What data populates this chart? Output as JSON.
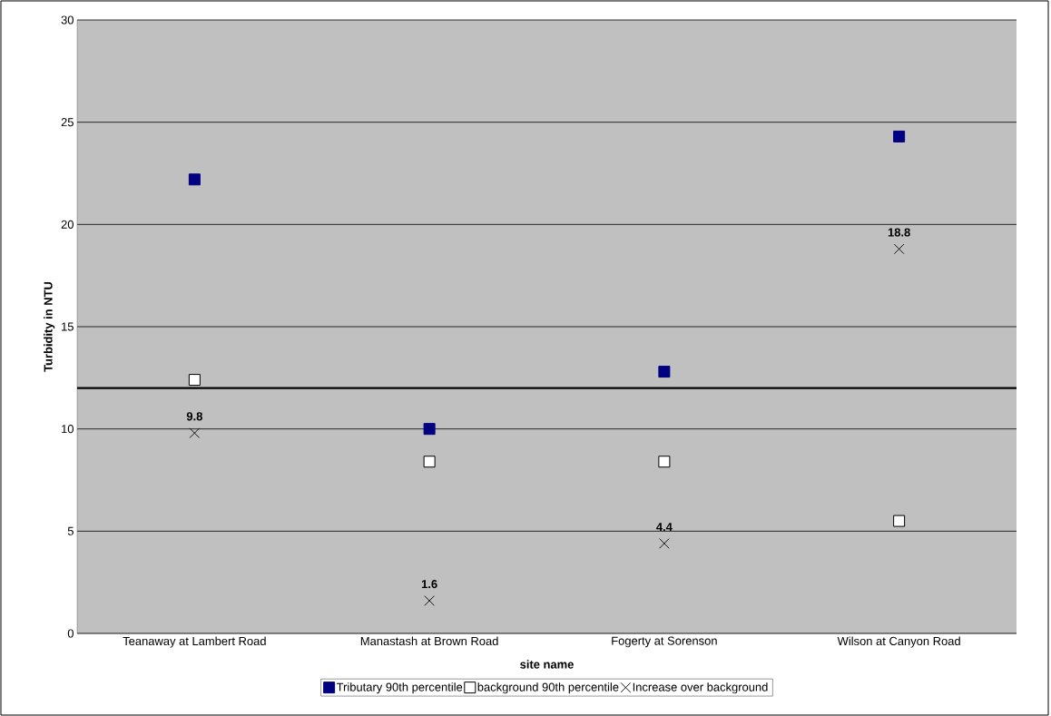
{
  "chart_data": {
    "type": "scatter",
    "xlabel": "site name",
    "ylabel": "Turbidity in NTU",
    "categories": [
      "Teanaway at Lambert Road",
      "Manastash at Brown Road",
      "Fogerty at Sorenson",
      "Wilson at Canyon Road"
    ],
    "series": [
      {
        "name": "Tributary 90th percentile",
        "color": "#000080",
        "marker": "square",
        "values": [
          22.2,
          10.0,
          12.8,
          24.3
        ]
      },
      {
        "name": "background 90th percentile",
        "color": "#ffffff",
        "marker": "square",
        "values": [
          12.4,
          8.4,
          8.4,
          5.5
        ]
      },
      {
        "name": "Increase over background",
        "color": "#000000",
        "marker": "cross",
        "values": [
          9.8,
          1.6,
          4.4,
          18.8
        ],
        "value_labels": [
          "9.8",
          "1.6",
          "4.4",
          "18.8"
        ]
      }
    ],
    "ylim": [
      0,
      30
    ],
    "yticks": [
      0,
      5,
      10,
      15,
      20,
      25,
      30
    ],
    "grid": "y",
    "legend": "bottom",
    "ref_lines": [
      {
        "axis": "y",
        "value": 12,
        "color": "#000000"
      }
    ]
  }
}
